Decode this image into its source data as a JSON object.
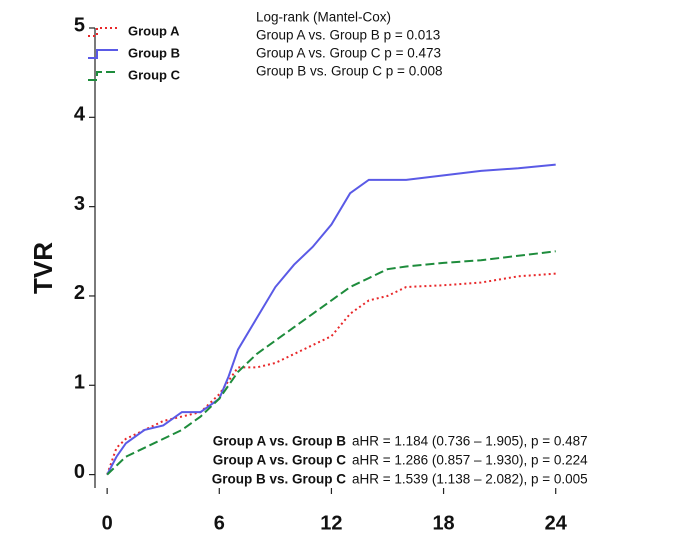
{
  "chart_data": {
    "type": "line",
    "y_label": "TVR",
    "x": [
      0,
      0.5,
      1,
      2,
      3,
      4,
      5,
      6,
      6.5,
      7,
      8,
      9,
      10,
      11,
      12,
      13,
      14,
      15,
      16,
      18,
      20,
      22,
      24
    ],
    "series": [
      {
        "name": "Group A",
        "color": "#e8282a",
        "dash": "2,3",
        "values": [
          0,
          0.3,
          0.4,
          0.5,
          0.6,
          0.65,
          0.7,
          0.9,
          1.05,
          1.2,
          1.2,
          1.25,
          1.35,
          1.45,
          1.55,
          1.8,
          1.95,
          2.0,
          2.1,
          2.12,
          2.15,
          2.22,
          2.25
        ]
      },
      {
        "name": "Group B",
        "color": "#5a5ae6",
        "dash": "none",
        "values": [
          0,
          0.2,
          0.35,
          0.5,
          0.55,
          0.7,
          0.7,
          0.85,
          1.1,
          1.4,
          1.75,
          2.1,
          2.35,
          2.55,
          2.8,
          3.15,
          3.3,
          3.3,
          3.3,
          3.35,
          3.4,
          3.43,
          3.47
        ]
      },
      {
        "name": "Group C",
        "color": "#1e8c3c",
        "dash": "9,4",
        "values": [
          0,
          0.1,
          0.2,
          0.3,
          0.4,
          0.5,
          0.65,
          0.85,
          1.0,
          1.15,
          1.35,
          1.5,
          1.65,
          1.8,
          1.95,
          2.1,
          2.2,
          2.3,
          2.33,
          2.37,
          2.4,
          2.45,
          2.5
        ]
      }
    ],
    "xlim": [
      -0.65,
      25.3
    ],
    "xticks": [
      0,
      6,
      12,
      18,
      24
    ],
    "ylim": [
      -0.15,
      5
    ],
    "yticks": [
      0,
      1,
      2,
      3,
      4,
      5
    ],
    "legend_position": "upper left",
    "annotations": {
      "log_rank": [
        "Log-rank (Mantel-Cox)",
        "Group A vs. Group B  p = 0.013",
        "Group A vs. Group C  p = 0.473",
        "Group B vs. Group C  p = 0.008"
      ],
      "hazard_ratios": [
        {
          "comparison": "Group A vs. Group B",
          "result": "aHR = 1.184 (0.736 – 1.905), p = 0.487"
        },
        {
          "comparison": "Group A vs. Group C",
          "result": "aHR = 1.286 (0.857 – 1.930), p = 0.224"
        },
        {
          "comparison": "Group B vs. Group C",
          "result": "aHR = 1.539 (1.138 – 2.082), p = 0.005"
        }
      ]
    }
  }
}
